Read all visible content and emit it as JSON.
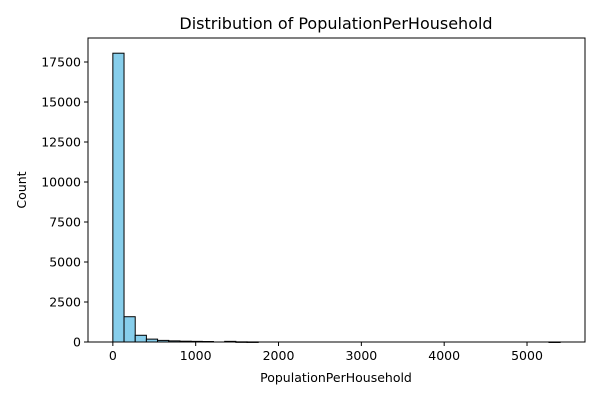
{
  "chart_data": {
    "type": "bar",
    "title": "Distribution of PopulationPerHousehold",
    "xlabel": "PopulationPerHousehold",
    "ylabel": "Count",
    "xlim": [
      -300,
      5700
    ],
    "ylim": [
      0,
      19000
    ],
    "xticks": [
      0,
      1000,
      2000,
      3000,
      4000,
      5000
    ],
    "yticks": [
      0,
      2500,
      5000,
      7500,
      10000,
      12500,
      15000,
      17500
    ],
    "bin_edges": [
      0,
      135,
      270,
      405,
      540,
      675,
      810,
      945,
      1080,
      1215,
      1350,
      1485,
      1620,
      1755,
      1890,
      2025,
      2160,
      2295,
      2430,
      2565,
      2700,
      2835,
      2970,
      3105,
      3240,
      3375,
      3510,
      3645,
      3780,
      3915,
      4050,
      4185,
      4320,
      4455,
      4590,
      4725,
      4860,
      4995,
      5130,
      5265,
      5400
    ],
    "values": [
      18050,
      1580,
      420,
      180,
      100,
      70,
      50,
      40,
      30,
      0,
      40,
      10,
      5,
      0,
      0,
      0,
      0,
      0,
      0,
      0,
      0,
      0,
      0,
      0,
      0,
      0,
      0,
      0,
      0,
      0,
      0,
      0,
      0,
      0,
      0,
      0,
      0,
      0,
      0,
      2
    ],
    "bar_color": "#87CEEB",
    "edge_color": "#000000",
    "grid": false
  }
}
